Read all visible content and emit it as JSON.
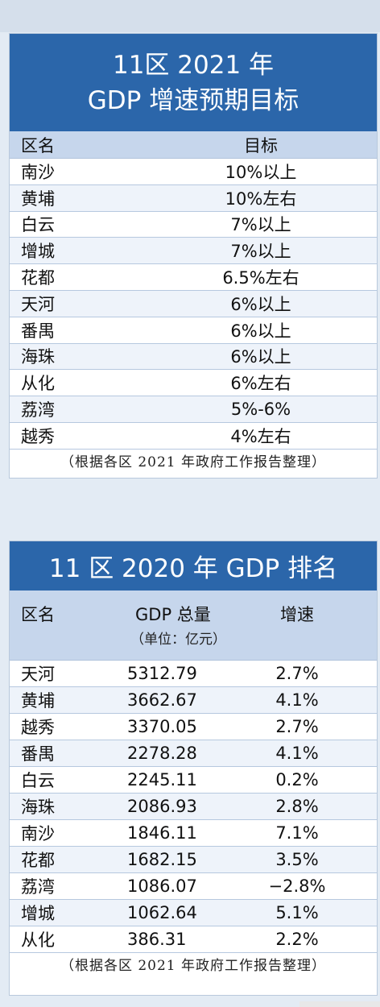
{
  "table1": {
    "title_line1": "11区 2021 年",
    "title_line2": "GDP 增速预期目标",
    "header": {
      "district": "区名",
      "target": "目标"
    },
    "rows": [
      {
        "district": "南沙",
        "target": "10%以上"
      },
      {
        "district": "黄埔",
        "target": "10%左右"
      },
      {
        "district": "白云",
        "target": "7%以上"
      },
      {
        "district": "增城",
        "target": "7%以上"
      },
      {
        "district": "花都",
        "target": "6.5%左右"
      },
      {
        "district": "天河",
        "target": "6%以上"
      },
      {
        "district": "番禺",
        "target": "6%以上"
      },
      {
        "district": "海珠",
        "target": "6%以上"
      },
      {
        "district": "从化",
        "target": "6%左右"
      },
      {
        "district": "荔湾",
        "target": "5%-6%"
      },
      {
        "district": "越秀",
        "target": "4%左右"
      }
    ],
    "note": "（根据各区 2021 年政府工作报告整理）"
  },
  "table2": {
    "title": "11 区 2020 年 GDP 排名",
    "header": {
      "district": "区名",
      "gdp": "GDP 总量",
      "unit": "（单位：亿元）",
      "rate": "增速"
    },
    "rows": [
      {
        "district": "天河",
        "gdp": "5312.79",
        "rate": "2.7%"
      },
      {
        "district": "黄埔",
        "gdp": "3662.67",
        "rate": "4.1%"
      },
      {
        "district": "越秀",
        "gdp": "3370.05",
        "rate": "2.7%"
      },
      {
        "district": "番禺",
        "gdp": "2278.28",
        "rate": "4.1%"
      },
      {
        "district": "白云",
        "gdp": "2245.11",
        "rate": "0.2%"
      },
      {
        "district": "海珠",
        "gdp": "2086.93",
        "rate": "2.8%"
      },
      {
        "district": "南沙",
        "gdp": "1846.11",
        "rate": "7.1%"
      },
      {
        "district": "花都",
        "gdp": "1682.15",
        "rate": "3.5%"
      },
      {
        "district": "荔湾",
        "gdp": "1086.07",
        "rate": "−2.8%"
      },
      {
        "district": "增城",
        "gdp": "1062.64",
        "rate": "5.1%"
      },
      {
        "district": "从化",
        "gdp": "386.31",
        "rate": "2.2%"
      }
    ],
    "note": "（根据各区 2021 年政府工作报告整理）"
  },
  "colors": {
    "title_bg": "#2b66aa",
    "header_bg": "#c6d6ec",
    "page_bg": "#e3ebf4"
  }
}
